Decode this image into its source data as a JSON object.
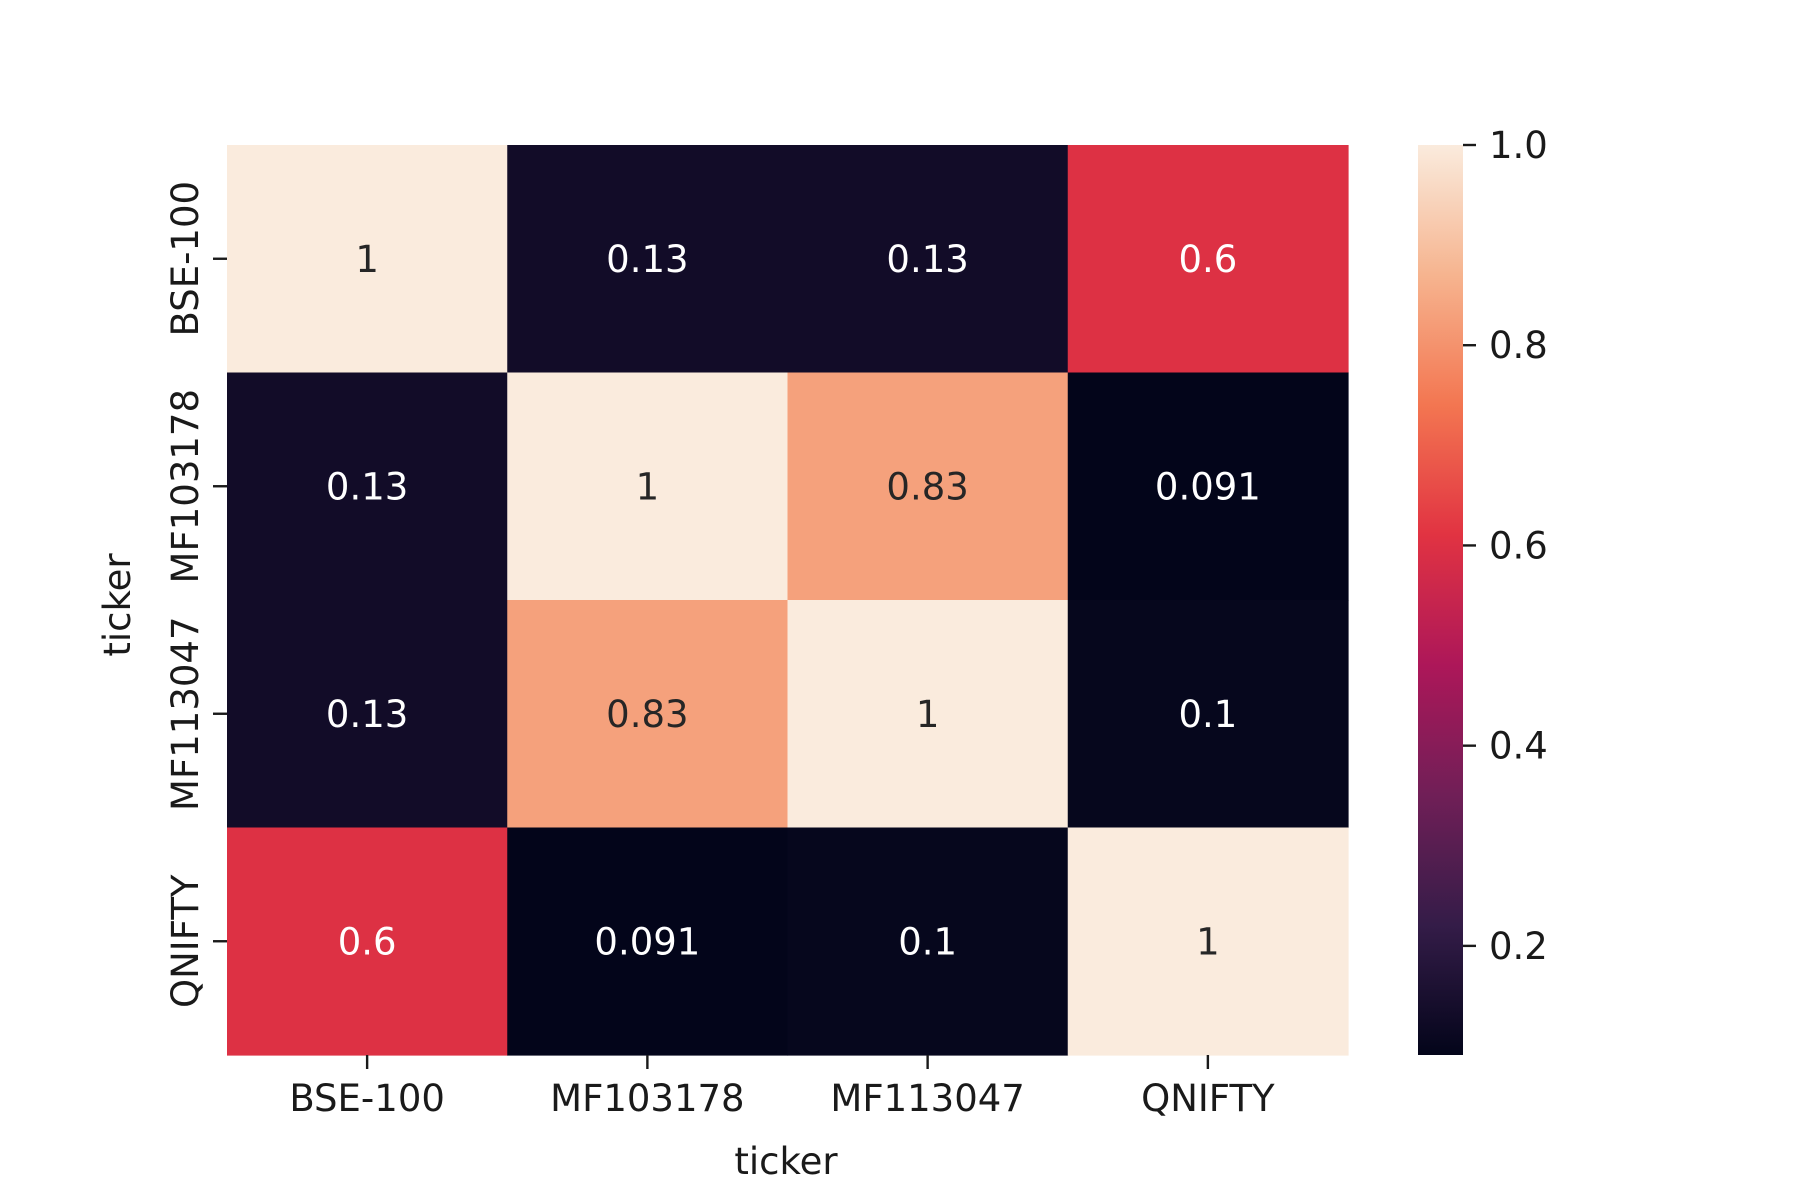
{
  "chart_data": {
    "type": "heatmap",
    "title": "",
    "xlabel": "ticker",
    "ylabel": "ticker",
    "x_categories": [
      "BSE-100",
      "MF103178",
      "MF113047",
      "QNIFTY"
    ],
    "y_categories": [
      "BSE-100",
      "MF103178",
      "MF113047",
      "QNIFTY"
    ],
    "values": [
      [
        1,
        0.13,
        0.13,
        0.6
      ],
      [
        0.13,
        1,
        0.83,
        0.091
      ],
      [
        0.13,
        0.83,
        1,
        0.1
      ],
      [
        0.6,
        0.091,
        0.1,
        1
      ]
    ],
    "value_labels": [
      [
        "1",
        "0.13",
        "0.13",
        "0.6"
      ],
      [
        "0.13",
        "1",
        "0.83",
        "0.091"
      ],
      [
        "0.13",
        "0.83",
        "1",
        "0.1"
      ],
      [
        "0.6",
        "0.091",
        "0.1",
        "1"
      ]
    ],
    "colorbar": {
      "range": [
        0.091,
        1.0
      ],
      "ticks": [
        0.2,
        0.4,
        0.6,
        0.8,
        1.0
      ],
      "tick_labels": [
        "0.2",
        "0.4",
        "0.6",
        "0.8",
        "1.0"
      ],
      "colormap": "rocket",
      "stops": [
        "#03051a",
        "#341c48",
        "#701f57",
        "#ad1759",
        "#e13342",
        "#f37651",
        "#f6b48f",
        "#faebdd"
      ]
    },
    "grid": false,
    "legend": "colorbar-right"
  }
}
